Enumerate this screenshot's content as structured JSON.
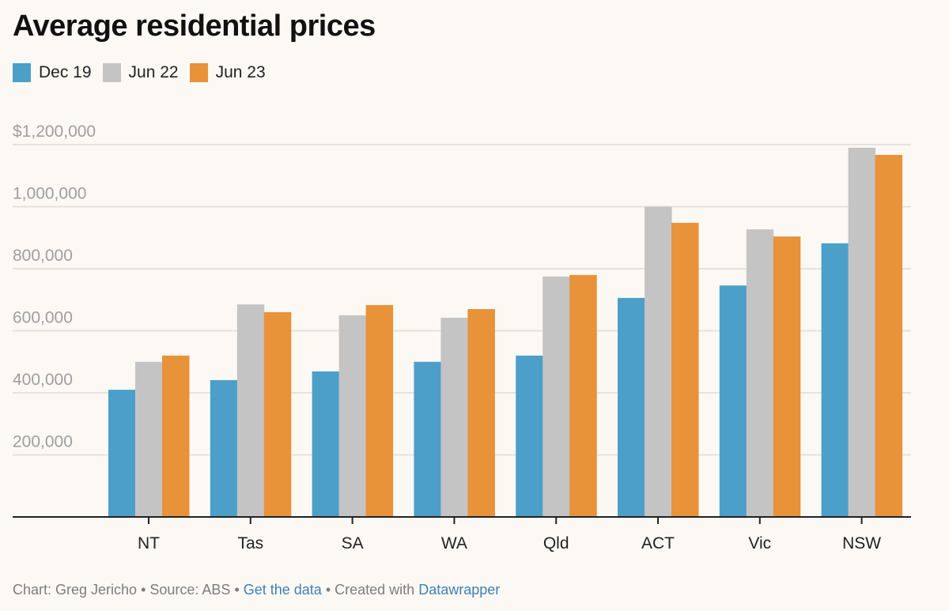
{
  "title": "Average residential prices",
  "legend": [
    {
      "label": "Dec 19",
      "color": "#4c9fc9"
    },
    {
      "label": "Jun 22",
      "color": "#c4c4c4"
    },
    {
      "label": "Jun 23",
      "color": "#e8923a"
    }
  ],
  "footer": {
    "chart_by": "Chart: Greg Jericho",
    "sep1": " • ",
    "source": "Source: ABS",
    "sep2": " • ",
    "get_data": "Get the data",
    "sep3": " • ",
    "created_with": "Created with ",
    "datawrapper": "Datawrapper"
  },
  "chart_data": {
    "type": "bar",
    "title": "Average residential prices",
    "xlabel": "",
    "ylabel": "",
    "categories": [
      "NT",
      "Tas",
      "SA",
      "WA",
      "Qld",
      "ACT",
      "Vic",
      "NSW"
    ],
    "series": [
      {
        "name": "Dec 19",
        "color": "#4c9fc9",
        "values": [
          410000,
          441000,
          469000,
          500000,
          520000,
          706000,
          746000,
          882000
        ]
      },
      {
        "name": "Jun 22",
        "color": "#c4c4c4",
        "values": [
          500000,
          685000,
          650000,
          642000,
          775000,
          1000000,
          927000,
          1190000
        ]
      },
      {
        "name": "Jun 23",
        "color": "#e8923a",
        "values": [
          520000,
          660000,
          683000,
          670000,
          780000,
          948000,
          904000,
          1167000
        ]
      }
    ],
    "ylim": [
      0,
      1200000
    ],
    "yticks": [
      200000,
      400000,
      600000,
      800000,
      1000000,
      1200000
    ],
    "ytick_labels": [
      "200,000",
      "400,000",
      "600,000",
      "800,000",
      "1,000,000",
      "$1,200,000"
    ],
    "grid": true,
    "legend_position": "top-left"
  }
}
